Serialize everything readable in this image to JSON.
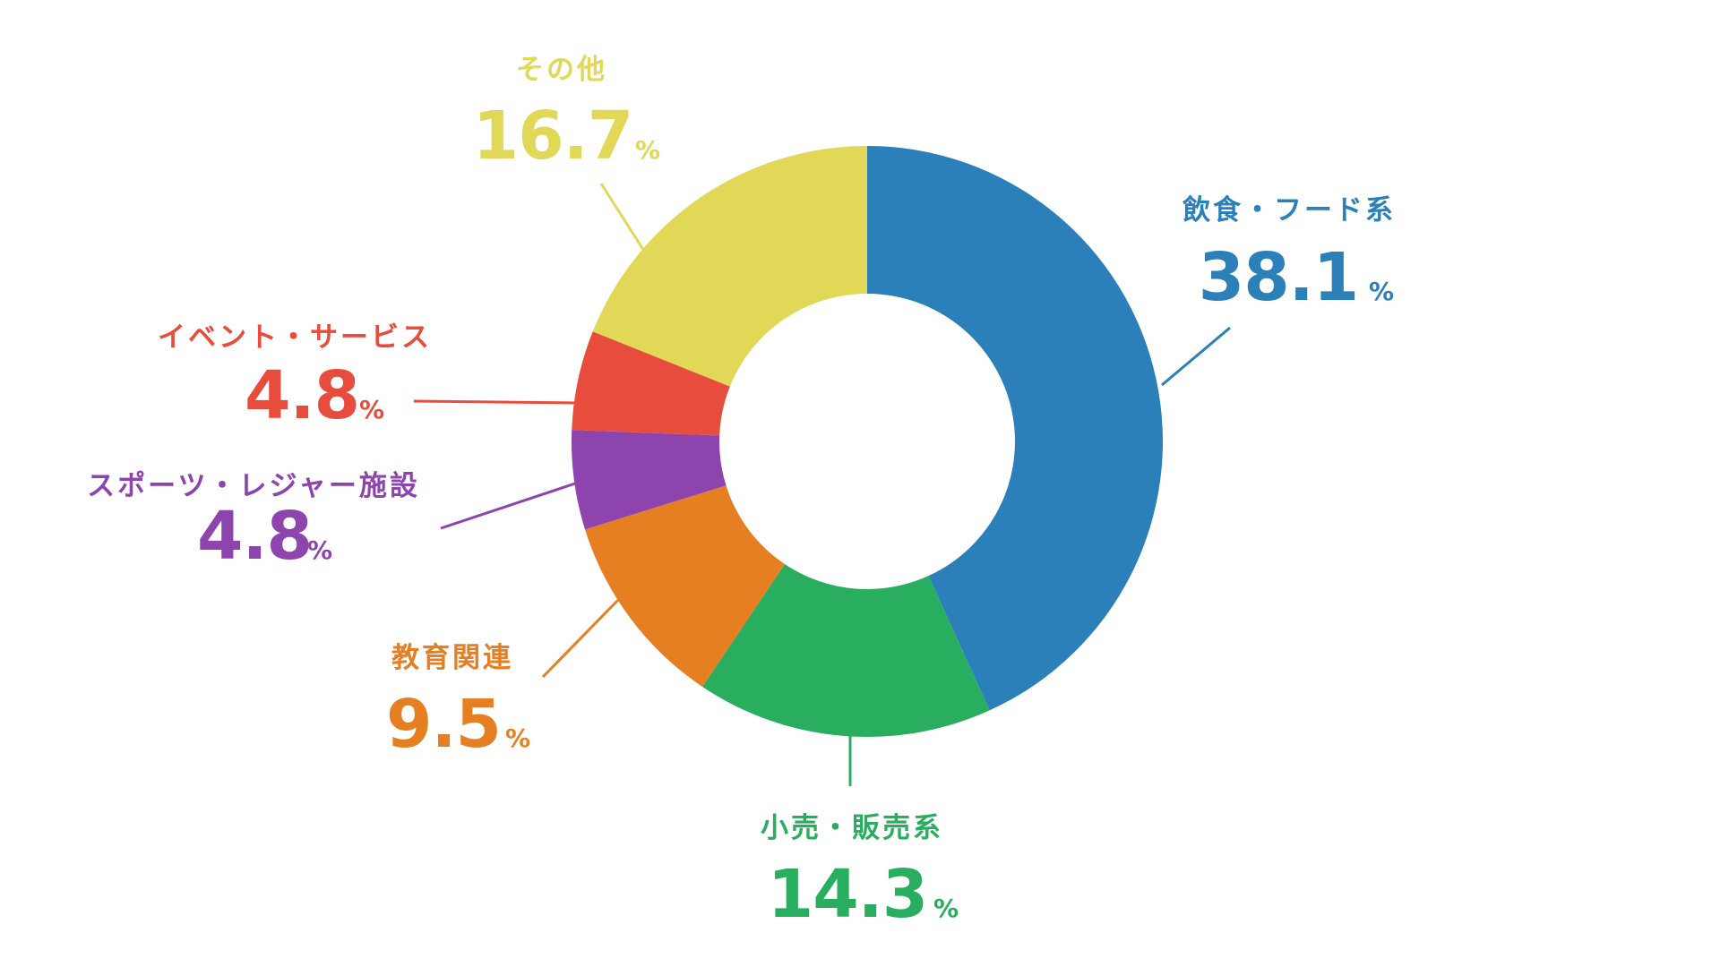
{
  "chart_data": {
    "type": "pie",
    "donut": true,
    "unit": "%",
    "slices": [
      {
        "label": "飲食・フード系",
        "value": 38.1,
        "display": "38.1",
        "color": "#2b80b9"
      },
      {
        "label": "小売・販売系",
        "value": 14.3,
        "display": "14.3",
        "color": "#29ae5f"
      },
      {
        "label": "教育関連",
        "value": 9.5,
        "display": "9.5",
        "color": "#e67f22"
      },
      {
        "label": "スポーツ・レジャー施設",
        "value": 4.8,
        "display": "4.8",
        "color": "#8e44ad"
      },
      {
        "label": "イベント・サービス",
        "value": 4.8,
        "display": "4.8",
        "color": "#e74c3c"
      },
      {
        "label": "その他",
        "value": 16.7,
        "display": "16.7",
        "color": "#e0d856"
      }
    ],
    "start_angle": "top",
    "direction": "clockwise",
    "legend": "none"
  }
}
